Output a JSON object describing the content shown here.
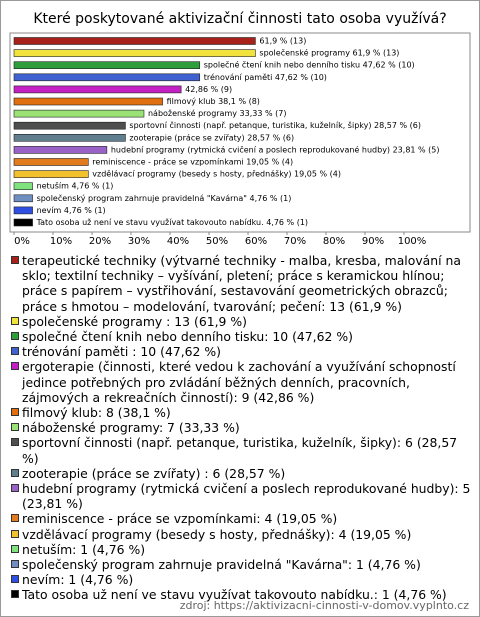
{
  "chart_data": {
    "type": "bar",
    "orientation": "horizontal",
    "title": "Které poskytované aktivizační činnosti tato osoba využívá?",
    "source": "zdroj: https://aktivizacni-cinnosti-v-domov.vyplnto.cz",
    "categories": [
      "terapeutické techniky (výtvarné techniky - malba, kresba, malování na sklo; textilní techniky – vyšívání, pletení; práce s keramickou hlínou; práce s papírem – vystřihování, sestavování geometrických obrazců; práce s hmotou – modelování, tvarování; pečení: 13 (61,9 %)",
      "společenské programy : 13 (61,9 %)",
      "společné čtení knih nebo denního tisku: 10 (47,62 %)",
      "trénování paměti : 10 (47,62 %)",
      "ergoterapie (činnosti, které vedou k zachování a využívání schopností jedince potřebných pro zvládání běžných denních, pracovních, zájmových a rekreačních činností): 9 (42,86 %)",
      "filmový klub: 8 (38,1 %)",
      "náboženské programy: 7 (33,33 %)",
      "sportovní činnosti (např. petanque, turistika, kuželník, šipky): 6 (28,57 %)",
      "zooterapie (práce se zvířaty) : 6 (28,57 %)",
      "hudební programy (rytmická cvičení a poslech reprodukované hudby): 5 (23,81 %)",
      "reminiscence - práce se vzpomínkami: 4 (19,05 %)",
      "vzdělávací programy (besedy s hosty, přednášky): 4 (19,05 %)",
      "netuším: 1 (4,76 %)",
      "společenský program zahrnuje pravidelná \"Kavárna\": 1 (4,76 %)",
      "nevím: 1 (4,76 %)",
      "Tato osoba už není ve stavu využívat takovouto nabídku.: 1 (4,76 %)"
    ],
    "values": [
      61.9,
      61.9,
      47.62,
      47.62,
      42.86,
      38.1,
      33.33,
      28.57,
      28.57,
      23.81,
      19.05,
      19.05,
      4.76,
      4.76,
      4.76,
      4.76
    ],
    "value_labels": [
      "61,9 % (13)",
      "společenské programy  61,9 % (13)",
      "společné čtení knih nebo denního tisku 47,62 % (10)",
      "trénování paměti  47,62 % (10)",
      "42,86 % (9)",
      "filmový klub 38,1 % (8)",
      "náboženské programy 33,33 % (7)",
      "sportovní činnosti (např. petanque, turistika, kuželník, šipky) 28,57 % (6)",
      "zooterapie (práce se zvířaty)  28,57 % (6)",
      "hudební programy (rytmická cvičení a poslech reprodukované hudby) 23,81 % (5)",
      "reminiscence - práce se vzpomínkami 19,05 % (4)",
      "vzdělávací programy (besedy s hosty, přednášky) 19,05 % (4)",
      "netuším 4,76 % (1)",
      "společenský program zahrnuje pravidelná \"Kavárna\" 4,76 % (1)",
      "nevím 4,76 % (1)",
      "Tato osoba už není ve stavu využívat takovouto nabídku. 4,76 % (1)"
    ],
    "colors": [
      "#a8221c",
      "#f2e23c",
      "#2e9e3c",
      "#3f62d0",
      "#c41fc4",
      "#e0700f",
      "#9ae276",
      "#4e4e4e",
      "#5f7f8f",
      "#9a62c6",
      "#e27a1e",
      "#f2c22c",
      "#7fe27f",
      "#6f8fc2",
      "#2f4fe2",
      "#000000"
    ],
    "xlim": [
      0,
      100
    ],
    "xticks": [
      {
        "value": 0,
        "label": "0%"
      },
      {
        "value": 10,
        "label": "10%"
      },
      {
        "value": 20,
        "label": "20%"
      },
      {
        "value": 30,
        "label": "30%"
      },
      {
        "value": 40,
        "label": "40%"
      },
      {
        "value": 50,
        "label": "50%"
      },
      {
        "value": 60,
        "label": "60%"
      },
      {
        "value": 70,
        "label": "70%"
      },
      {
        "value": 80,
        "label": "80%"
      },
      {
        "value": 90,
        "label": "90%"
      },
      {
        "value": 100,
        "label": "100%"
      }
    ]
  }
}
